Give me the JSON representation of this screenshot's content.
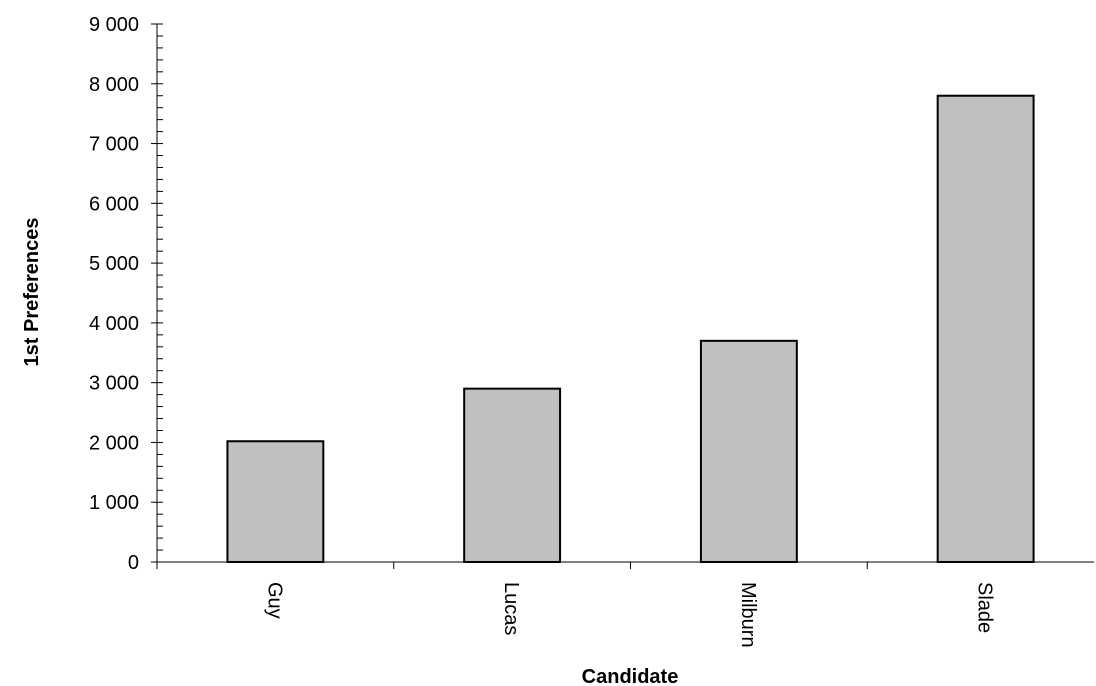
{
  "chart_data": {
    "type": "bar",
    "categories": [
      "Guy",
      "Lucas",
      "Milburn",
      "Slade"
    ],
    "values": [
      2020,
      2900,
      3700,
      7800
    ],
    "xlabel": "Candidate",
    "ylabel": "1st Preferences",
    "ylim": [
      0,
      9000
    ],
    "y_ticks": [
      "0",
      "1 000",
      "2 000",
      "3 000",
      "4 000",
      "5 000",
      "6 000",
      "7 000",
      "8 000",
      "9 000"
    ],
    "grid": false,
    "legend": "none",
    "bar_color": "#c0c0c0"
  }
}
